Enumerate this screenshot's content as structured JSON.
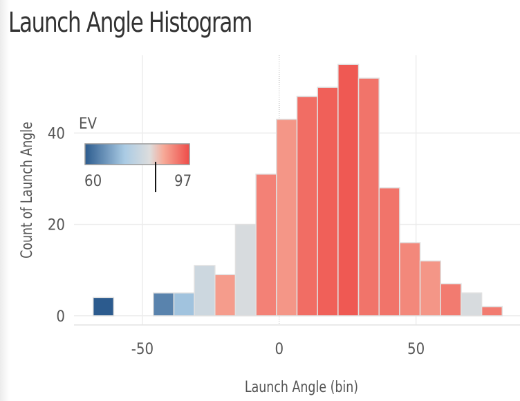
{
  "chart_data": {
    "type": "bar",
    "title": "Launch Angle Histogram",
    "xlabel": "Launch Angle (bin)",
    "ylabel": "Count of Launch Angle",
    "xlim": [
      -75,
      88
    ],
    "ylim": [
      -2,
      57
    ],
    "x_ticks": [
      {
        "value": -50,
        "label": "-50"
      },
      {
        "value": 0,
        "label": "0"
      },
      {
        "value": 50,
        "label": "50"
      }
    ],
    "y_ticks": [
      {
        "value": 0,
        "label": "0"
      },
      {
        "value": 20,
        "label": "20"
      },
      {
        "value": 40,
        "label": "40"
      }
    ],
    "bin_width": 7.5,
    "bins": [
      {
        "x0": -68,
        "count": 4,
        "ev": 60
      },
      {
        "x0": -46,
        "count": 5,
        "ev": 65
      },
      {
        "x0": -38.5,
        "count": 5,
        "ev": 73
      },
      {
        "x0": -31,
        "count": 11,
        "ev": 77
      },
      {
        "x0": -23.5,
        "count": 9,
        "ev": 85
      },
      {
        "x0": -16,
        "count": 20,
        "ev": 78
      },
      {
        "x0": -8.5,
        "count": 31,
        "ev": 89
      },
      {
        "x0": -1,
        "count": 43,
        "ev": 86
      },
      {
        "x0": 6.5,
        "count": 48,
        "ev": 92
      },
      {
        "x0": 14,
        "count": 50,
        "ev": 94
      },
      {
        "x0": 21.5,
        "count": 55,
        "ev": 95
      },
      {
        "x0": 29,
        "count": 52,
        "ev": 91
      },
      {
        "x0": 36.5,
        "count": 28,
        "ev": 91
      },
      {
        "x0": 44,
        "count": 16,
        "ev": 88
      },
      {
        "x0": 51.5,
        "count": 12,
        "ev": 86
      },
      {
        "x0": 59,
        "count": 7,
        "ev": 90
      },
      {
        "x0": 66.5,
        "count": 5,
        "ev": 78
      },
      {
        "x0": 74,
        "count": 2,
        "ev": 90
      }
    ],
    "color_legend": {
      "title": "EV",
      "min": 60,
      "max": 97,
      "min_label": "60",
      "max_label": "97",
      "marker_value": 85,
      "low_color": "#2c5b8e",
      "mid_color": "#dddddd",
      "high_color": "#ee4c48"
    },
    "reference_line_x": 0
  }
}
